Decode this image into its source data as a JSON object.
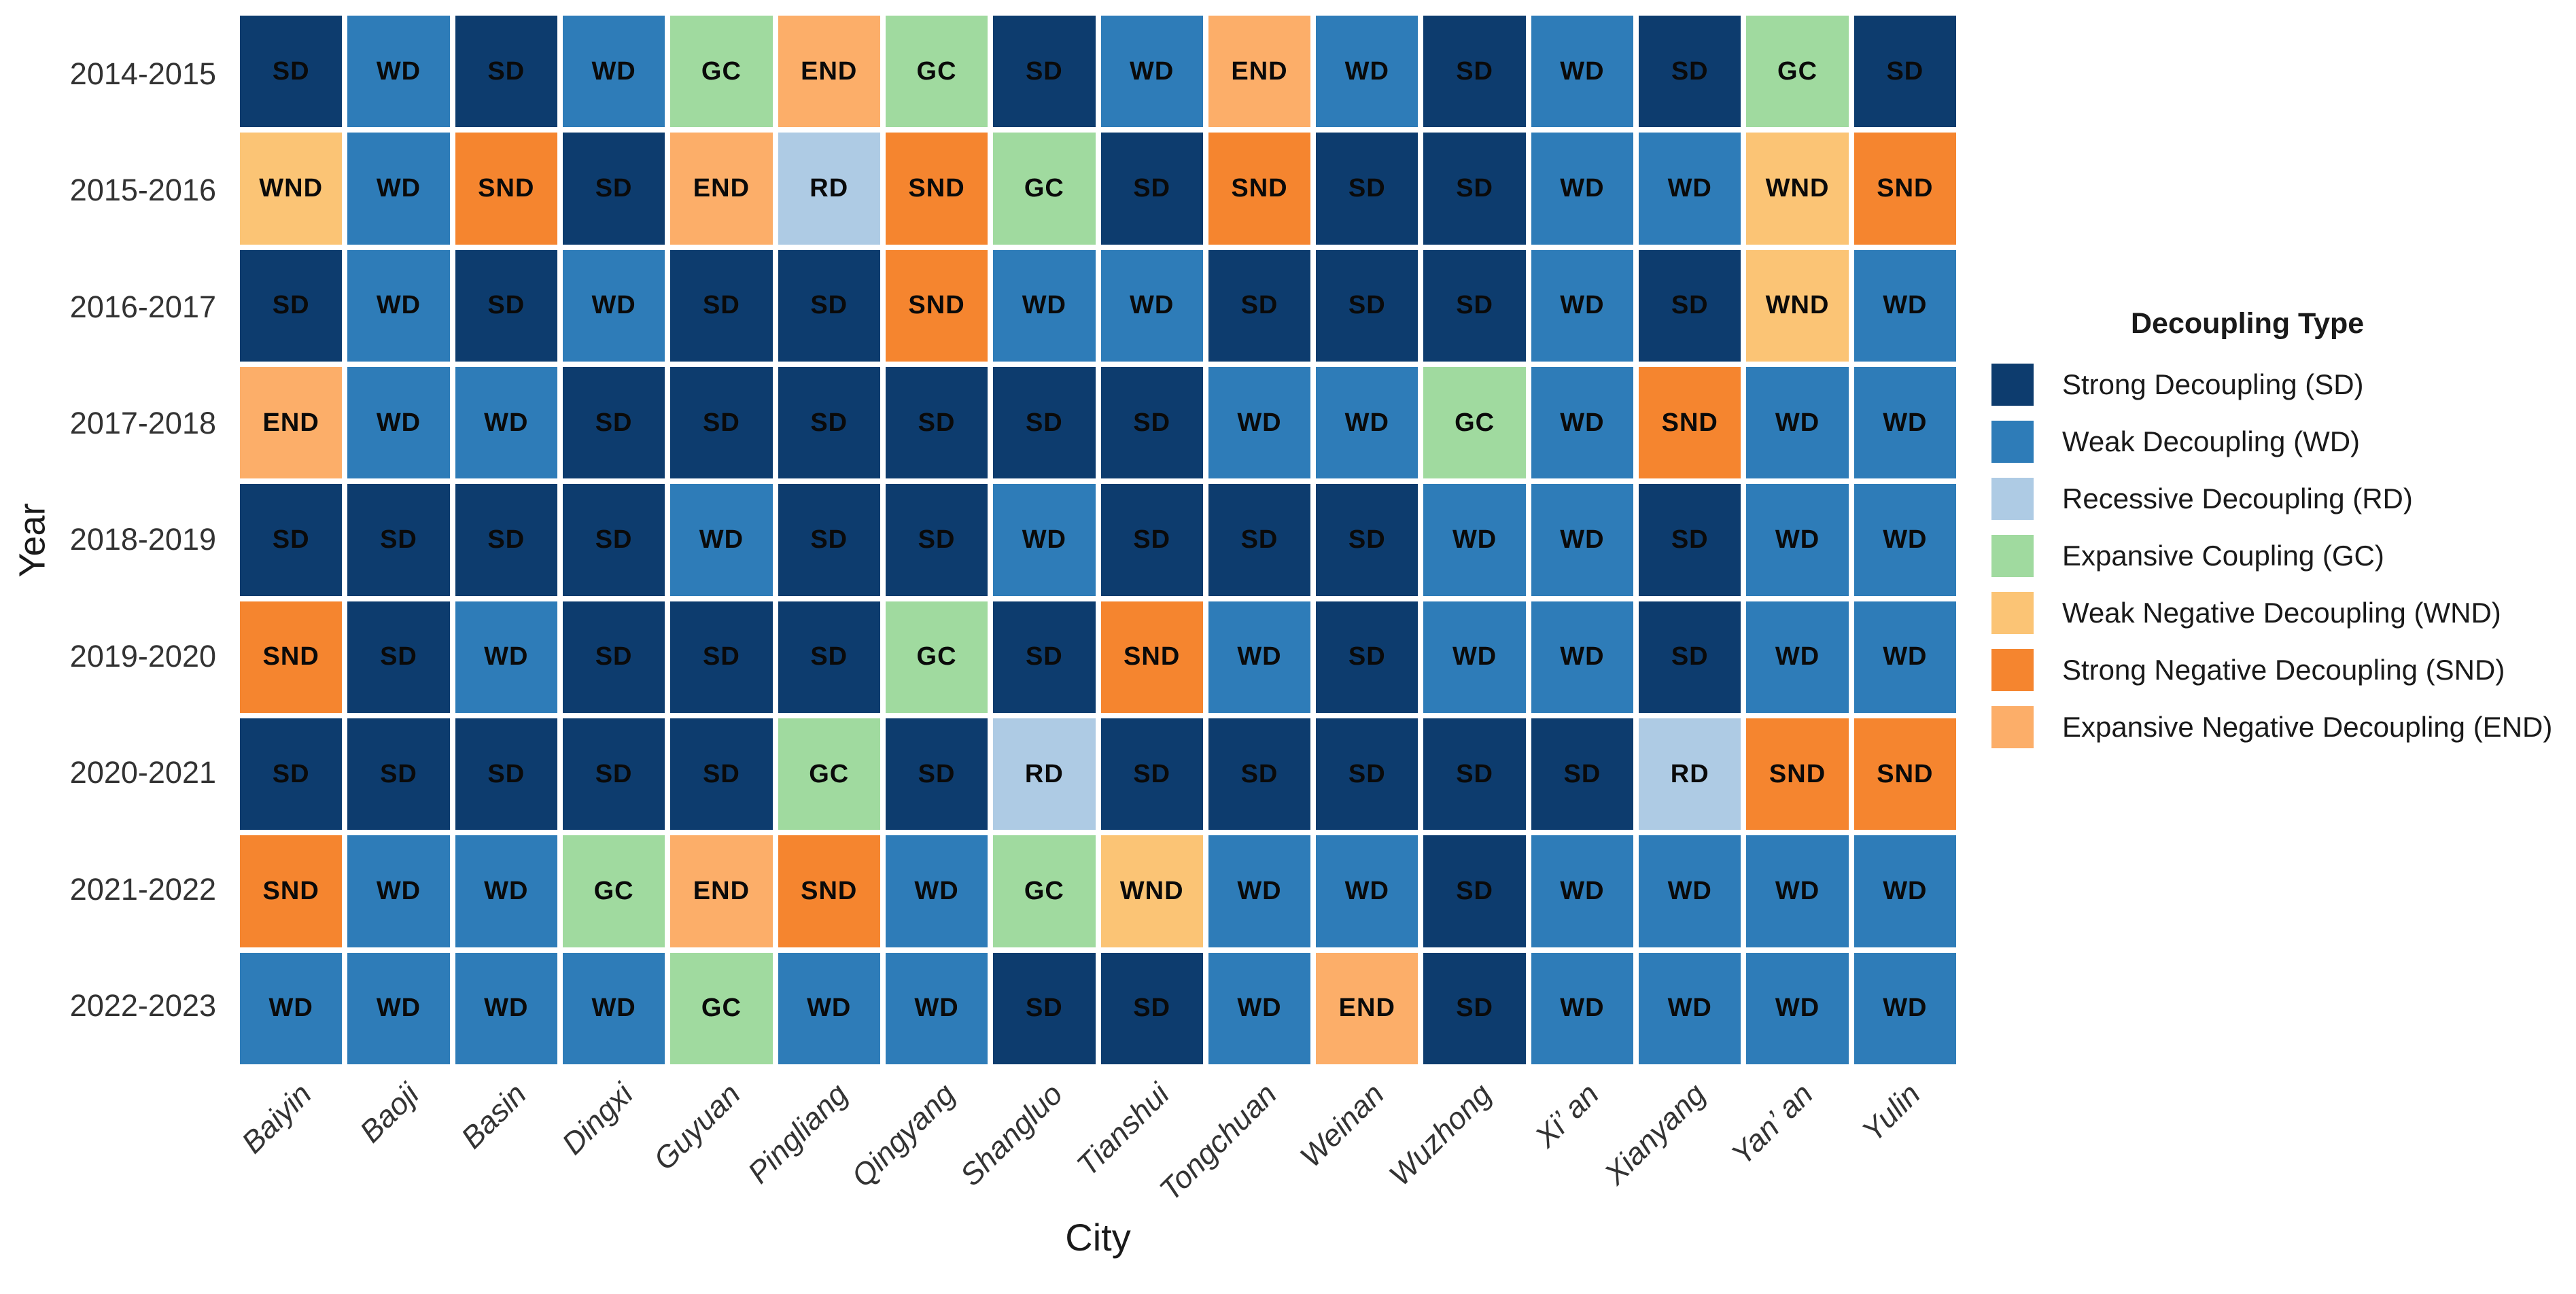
{
  "chart_data": {
    "type": "heatmap",
    "title": "",
    "xlabel": "City",
    "ylabel": "Year",
    "categories_x": [
      "Baiyin",
      "Baoji",
      "Basin",
      "Dingxi",
      "Guyuan",
      "Pingliang",
      "Qingyang",
      "Shangluo",
      "Tianshui",
      "Tongchuan",
      "Weinan",
      "Wuzhong",
      "Xi’ an",
      "Xianyang",
      "Yan’ an",
      "Yulin"
    ],
    "categories_y": [
      "2014-2015",
      "2015-2016",
      "2016-2017",
      "2017-2018",
      "2018-2019",
      "2019-2020",
      "2020-2021",
      "2021-2022",
      "2022-2023"
    ],
    "values": [
      [
        "SD",
        "WD",
        "SD",
        "WD",
        "GC",
        "END",
        "GC",
        "SD",
        "WD",
        "END",
        "WD",
        "SD",
        "WD",
        "SD",
        "GC",
        "SD"
      ],
      [
        "WND",
        "WD",
        "SND",
        "SD",
        "END",
        "RD",
        "SND",
        "GC",
        "SD",
        "SND",
        "SD",
        "SD",
        "WD",
        "WD",
        "WND",
        "SND"
      ],
      [
        "SD",
        "WD",
        "SD",
        "WD",
        "SD",
        "SD",
        "SND",
        "WD",
        "WD",
        "SD",
        "SD",
        "SD",
        "WD",
        "SD",
        "WND",
        "WD"
      ],
      [
        "END",
        "WD",
        "WD",
        "SD",
        "SD",
        "SD",
        "SD",
        "SD",
        "SD",
        "WD",
        "WD",
        "GC",
        "WD",
        "SND",
        "WD",
        "WD"
      ],
      [
        "SD",
        "SD",
        "SD",
        "SD",
        "WD",
        "SD",
        "SD",
        "WD",
        "SD",
        "SD",
        "SD",
        "WD",
        "WD",
        "SD",
        "WD",
        "WD"
      ],
      [
        "SND",
        "SD",
        "WD",
        "SD",
        "SD",
        "SD",
        "GC",
        "SD",
        "SND",
        "WD",
        "SD",
        "WD",
        "WD",
        "SD",
        "WD",
        "WD"
      ],
      [
        "SD",
        "SD",
        "SD",
        "SD",
        "SD",
        "GC",
        "SD",
        "RD",
        "SD",
        "SD",
        "SD",
        "SD",
        "SD",
        "RD",
        "SND",
        "SND"
      ],
      [
        "SND",
        "WD",
        "WD",
        "GC",
        "END",
        "SND",
        "WD",
        "GC",
        "WND",
        "WD",
        "WD",
        "SD",
        "WD",
        "WD",
        "WD",
        "WD"
      ],
      [
        "WD",
        "WD",
        "WD",
        "WD",
        "GC",
        "WD",
        "WD",
        "SD",
        "SD",
        "WD",
        "END",
        "SD",
        "WD",
        "WD",
        "WD",
        "WD"
      ]
    ],
    "legend": {
      "title": "Decoupling Type",
      "entries": [
        {
          "code": "SD",
          "label": "Strong Decoupling (SD)",
          "color": "#0d3c6e"
        },
        {
          "code": "WD",
          "label": "Weak Decoupling (WD)",
          "color": "#2e7cb8"
        },
        {
          "code": "RD",
          "label": "Recessive Decoupling (RD)",
          "color": "#aecbe4"
        },
        {
          "code": "GC",
          "label": "Expansive Coupling (GC)",
          "color": "#a0da9f"
        },
        {
          "code": "WND",
          "label": "Weak Negative Decoupling (WND)",
          "color": "#fbc475"
        },
        {
          "code": "SND",
          "label": "Strong Negative Decoupling (SND)",
          "color": "#f5852f"
        },
        {
          "code": "END",
          "label": "Expansive Negative Decoupling (END)",
          "color": "#fcae69"
        }
      ],
      "position": "right"
    },
    "layout": {
      "grid": "off",
      "x_tick_rotation": -45,
      "cell_gap_color": "#ffffff"
    }
  }
}
